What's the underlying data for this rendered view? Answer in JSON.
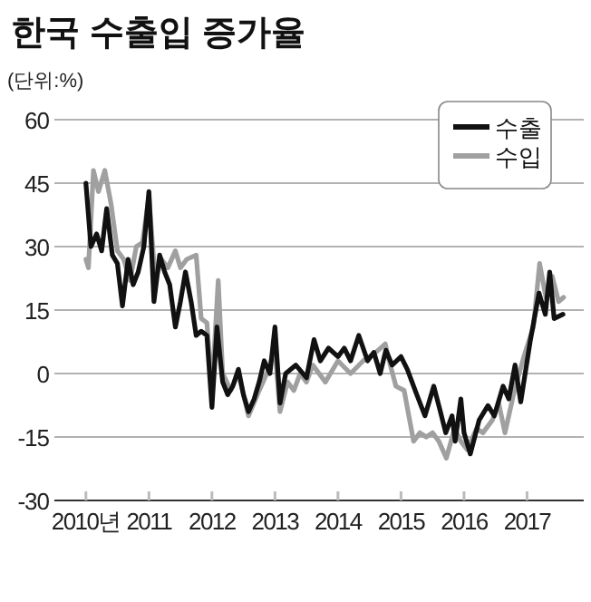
{
  "chart_data": {
    "type": "line",
    "title": "한국 수출입 증가율",
    "subtitle": "(단위:%)",
    "xlim": [
      2009.5,
      2017.9
    ],
    "xticks": [
      {
        "value": 2010,
        "label": "2010년"
      },
      2011,
      2012,
      2013,
      2014,
      2015,
      2016,
      2017
    ],
    "ylim": [
      -30,
      60
    ],
    "yticks": [
      -30,
      -15,
      0,
      15,
      30,
      45,
      60
    ],
    "grid": "y",
    "legend": "top right",
    "series": [
      {
        "name": "수입",
        "color": "#a0a0a0",
        "x": [
          2010.0,
          2010.04,
          2010.12,
          2010.2,
          2010.3,
          2010.4,
          2010.5,
          2010.6,
          2010.7,
          2010.8,
          2010.9,
          2011.0,
          2011.1,
          2011.2,
          2011.3,
          2011.42,
          2011.5,
          2011.6,
          2011.75,
          2011.83,
          2011.92,
          2012.0,
          2012.1,
          2012.17,
          2012.3,
          2012.42,
          2012.58,
          2012.75,
          2012.9,
          2013.0,
          2013.08,
          2013.2,
          2013.3,
          2013.4,
          2013.5,
          2013.6,
          2013.8,
          2014.0,
          2014.2,
          2014.4,
          2014.6,
          2014.75,
          2014.83,
          2014.92,
          2015.05,
          2015.2,
          2015.3,
          2015.4,
          2015.5,
          2015.6,
          2015.72,
          2015.85,
          2015.95,
          2016.05,
          2016.2,
          2016.3,
          2016.45,
          2016.55,
          2016.65,
          2016.8,
          2016.95,
          2017.1,
          2017.2,
          2017.3,
          2017.4,
          2017.5,
          2017.58
        ],
        "values": [
          27,
          25,
          48,
          43,
          48,
          40,
          29,
          27,
          22,
          30,
          31,
          42,
          22,
          27,
          25,
          29,
          25,
          27,
          28,
          13,
          12,
          -4,
          22,
          0,
          -4,
          0,
          -10,
          -4,
          1,
          6,
          -9,
          -2,
          -4,
          0,
          -2,
          2,
          -2,
          3,
          0,
          3,
          5,
          7,
          2,
          -3,
          -4,
          -16,
          -14,
          -15,
          -14,
          -16,
          -20,
          -13,
          -16,
          -18,
          -13,
          -14,
          -11,
          -7,
          -14,
          -4,
          4,
          11,
          26,
          18,
          23,
          17,
          18
        ]
      },
      {
        "name": "수출",
        "color": "#111111",
        "x": [
          2010.0,
          2010.08,
          2010.17,
          2010.25,
          2010.33,
          2010.42,
          2010.5,
          2010.58,
          2010.67,
          2010.75,
          2010.83,
          2010.92,
          2011.0,
          2011.08,
          2011.17,
          2011.25,
          2011.33,
          2011.42,
          2011.5,
          2011.58,
          2011.67,
          2011.75,
          2011.83,
          2011.92,
          2012.0,
          2012.08,
          2012.17,
          2012.25,
          2012.33,
          2012.42,
          2012.5,
          2012.58,
          2012.67,
          2012.75,
          2012.83,
          2012.92,
          2013.0,
          2013.08,
          2013.17,
          2013.33,
          2013.5,
          2013.62,
          2013.72,
          2013.85,
          2014.0,
          2014.1,
          2014.2,
          2014.33,
          2014.47,
          2014.57,
          2014.67,
          2014.76,
          2014.86,
          2015.0,
          2015.1,
          2015.24,
          2015.38,
          2015.52,
          2015.62,
          2015.71,
          2015.81,
          2015.86,
          2015.95,
          2016.0,
          2016.1,
          2016.24,
          2016.38,
          2016.48,
          2016.62,
          2016.71,
          2016.81,
          2016.9,
          2017.05,
          2017.19,
          2017.29,
          2017.36,
          2017.43,
          2017.57
        ],
        "values": [
          45,
          30,
          33,
          29,
          39,
          28,
          26,
          16,
          27,
          21,
          24,
          30,
          43,
          17,
          28,
          24,
          21,
          11,
          17,
          24,
          17,
          9,
          10,
          9,
          -8,
          11,
          -2,
          -5,
          -3,
          1,
          -5,
          -9,
          -6,
          -2,
          3,
          0,
          11,
          -7,
          0,
          2,
          -1,
          8,
          3,
          6,
          4,
          6,
          3,
          9,
          3,
          5,
          0,
          5.5,
          2,
          4,
          1,
          -4.6,
          -10,
          -3,
          -8.7,
          -14,
          -10,
          -16,
          -6,
          -14,
          -19,
          -11,
          -7.6,
          -10,
          -3,
          -6,
          2,
          -6.7,
          7.6,
          19,
          14,
          24,
          13,
          14
        ]
      }
    ]
  }
}
